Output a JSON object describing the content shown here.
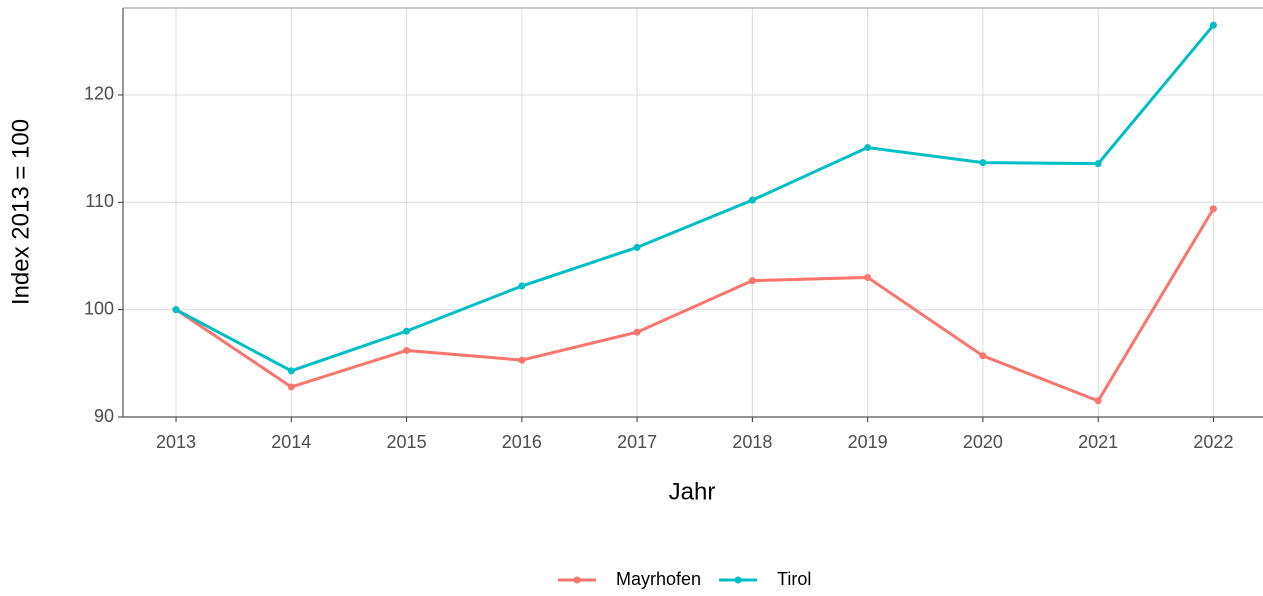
{
  "chart_data": {
    "type": "line",
    "x_label": "Jahr",
    "y_label": "Index  2013  = 100",
    "x": [
      2013,
      2014,
      2015,
      2016,
      2017,
      2018,
      2019,
      2020,
      2021,
      2022
    ],
    "series": [
      {
        "name": "Mayrhofen",
        "color": "#F8766D",
        "values": [
          100,
          92.8,
          96.2,
          95.3,
          97.9,
          102.7,
          103.0,
          95.7,
          91.5,
          109.4
        ]
      },
      {
        "name": "Tirol",
        "color": "#00BFC4",
        "values": [
          100,
          94.3,
          98.0,
          102.2,
          105.8,
          110.2,
          115.1,
          113.7,
          113.6,
          126.5
        ]
      }
    ],
    "xlim": [
      2012.54,
      2022.43
    ],
    "xticks": [
      2013,
      2014,
      2015,
      2016,
      2017,
      2018,
      2019,
      2020,
      2021,
      2022
    ],
    "ylim": [
      90,
      128.1
    ],
    "yticks": [
      90,
      100,
      110,
      120
    ],
    "grid": true,
    "legend": "bottom"
  }
}
